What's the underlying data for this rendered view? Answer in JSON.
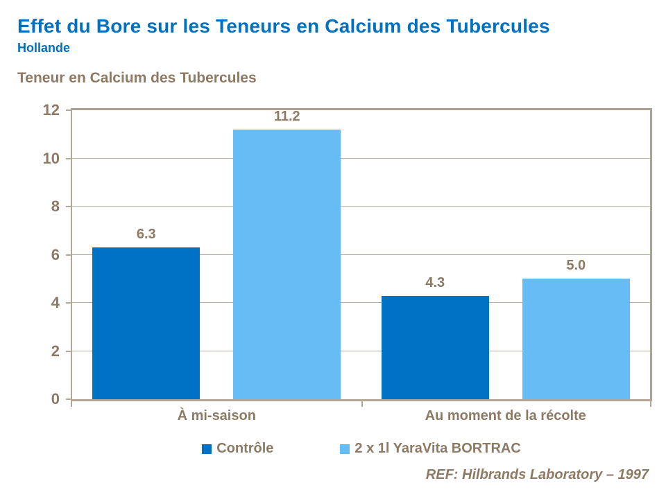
{
  "header": {
    "title": "Effet du Bore sur les Teneurs en Calcium des Tubercules",
    "subtitle": "Hollande"
  },
  "footer": {
    "reference": "REF: Hilbrands Laboratory – 1997"
  },
  "colors": {
    "title_blue": "#0070C0",
    "text_brown": "#8C7A64",
    "axis_tan": "#B3A797",
    "series_controle": "#0072C6",
    "series_bortrac": "#66BCF5"
  },
  "chart_data": {
    "type": "bar",
    "title": "Teneur en Calcium des Tubercules",
    "categories": [
      "À mi-saison",
      "Au moment de la récolte"
    ],
    "series": [
      {
        "name": "Contrôle",
        "color": "#0072C6",
        "values": [
          6.3,
          4.3
        ]
      },
      {
        "name": "2 x 1l YaraVita BORTRAC",
        "color": "#66BCF5",
        "values": [
          11.2,
          5.0
        ]
      }
    ],
    "value_label_format": "one_decimal",
    "xlabel": "",
    "ylabel": "",
    "ylim": [
      0,
      12
    ],
    "yticks": [
      0,
      2,
      4,
      6,
      8,
      10,
      12
    ],
    "grid": true,
    "legend_position": "bottom"
  }
}
